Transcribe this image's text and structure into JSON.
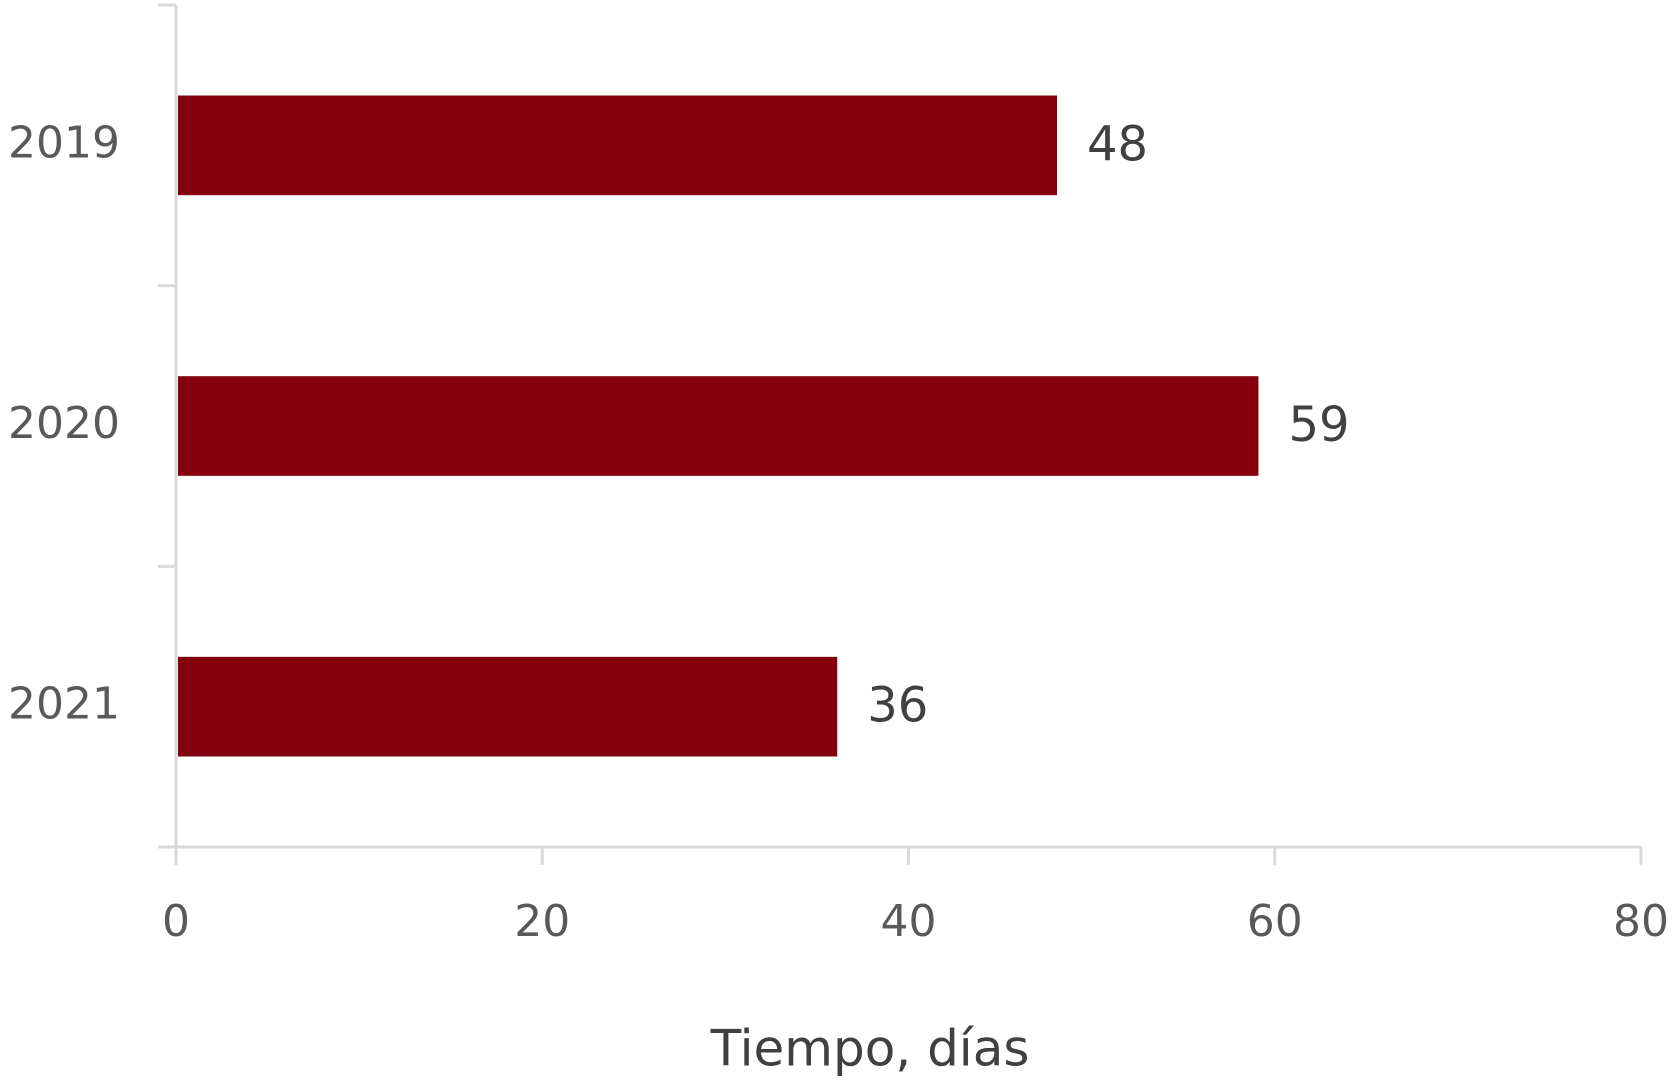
{
  "chart_data": {
    "type": "hbar",
    "x_label": "Tiempo, días",
    "categories": [
      "2019",
      "2020",
      "2021"
    ],
    "values": [
      48,
      59,
      36
    ],
    "color": "#85000d",
    "xlim": [
      0,
      80
    ],
    "xticks": [
      0,
      20,
      40,
      60,
      80
    ]
  }
}
